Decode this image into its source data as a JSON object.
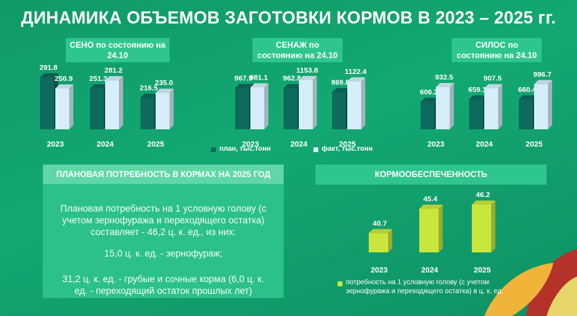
{
  "title": "ДИНАМИКА ОБЪЕМОВ ЗАГОТОВКИ КОРМОВ В 2023 – 2025 гг.",
  "needs": {
    "title": "ПЛАНОВАЯ ПОТРЕБНОСТЬ В КОРМАХ НА 2025 ГОД",
    "paragraphs": [
      "Плановая потребность на 1 условную голову (с учетом зернофуража и переходящего остатка) составляет - 46,2 ц. к. ед., из них:",
      "15,0 ц. к. ед. - зернофураж;",
      "31,2 ц. к. ед. - грубые и сочные корма (6,0 ц. к. ед. - переходящий остаток прошлых лет)"
    ]
  },
  "chart_data": [
    {
      "type": "bar3d",
      "title": "СЕНО по состоянию на 24.10",
      "categories": [
        "2023",
        "2024",
        "2025"
      ],
      "ylim": [
        100,
        320
      ],
      "series": [
        {
          "color": "#0d6a5c",
          "values": [
            291.8,
            251.3,
            216.5
          ]
        },
        {
          "color": "#d6eefa",
          "values": [
            250.9,
            281.2,
            235.0
          ],
          "value_labels": [
            "250.9",
            "281.2",
            "235.0"
          ]
        }
      ]
    },
    {
      "type": "bar3d",
      "title": "СЕНАЖ по состоянию на 24.10",
      "categories": [
        "2023",
        "2024",
        "2025"
      ],
      "ylim": [
        0,
        1200
      ],
      "series": [
        {
          "name": "план, тыс.тонн",
          "color": "#0d6a5c",
          "values": [
            967.9,
            962.8,
            869.8
          ]
        },
        {
          "name": "факт, тыс.тонн",
          "color": "#d6eefa",
          "values": [
            981.1,
            1153.8,
            1122.4
          ]
        }
      ]
    },
    {
      "type": "bar3d",
      "title": "СИЛОС по состоянию на 24.10",
      "categories": [
        "2023",
        "2024",
        "2025"
      ],
      "ylim": [
        0,
        1100
      ],
      "series": [
        {
          "color": "#0d6a5c",
          "values": [
            606.2,
            659.1,
            660.4
          ]
        },
        {
          "color": "#d6eefa",
          "values": [
            932.5,
            907.5,
            996.7
          ]
        }
      ]
    },
    {
      "type": "bar3d",
      "title": "КОРМООБЕСПЕЧЕННОСТЬ",
      "categories": [
        "2023",
        "2024",
        "2025"
      ],
      "ylim": [
        37,
        47
      ],
      "series": [
        {
          "name": "потребность на 1 условную голову (с учетом зернофуража и переходящего остатка) в ц. к. ед.",
          "color": "#c9e63c",
          "values": [
            40.7,
            45.4,
            46.2
          ]
        }
      ]
    }
  ]
}
